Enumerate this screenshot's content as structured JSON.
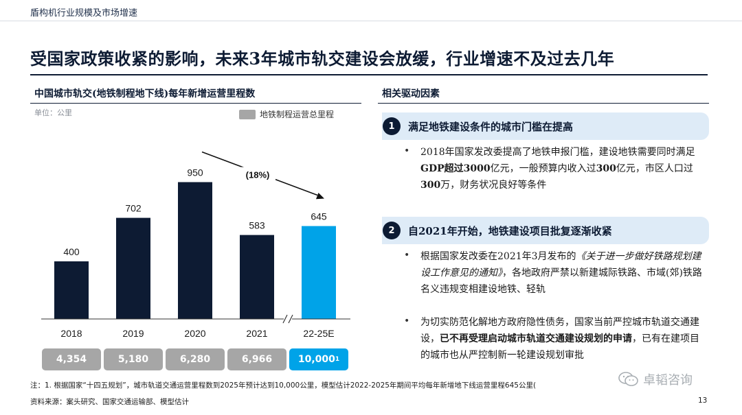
{
  "header": {
    "section_label": "盾构机行业规模及市场增速",
    "headline": "受国家政策收紧的影响，未来3年城市轨交建设会放缓，行业增速不及过去几年"
  },
  "left_panel": {
    "title": "中国城市轨交(地铁制程地下线)每年新增运营里程数",
    "unit": "单位：公里",
    "legend_label": "地铁制程运营总里程"
  },
  "chart_data": {
    "type": "bar",
    "categories": [
      "2018",
      "2019",
      "2020",
      "2021",
      "22-25E"
    ],
    "values": [
      400,
      702,
      950,
      583,
      645
    ],
    "value_labels": [
      "400",
      "702",
      "950",
      "583",
      "645"
    ],
    "totals": [
      "4,354",
      "5,180",
      "6,280",
      "6,966",
      "10,000"
    ],
    "total_footnote": "1",
    "annotation": "(18%)",
    "ylim": [
      0,
      1000
    ],
    "colors": {
      "actual": "#0d1b33",
      "estimate": "#00a3e8",
      "total_actual": "#a6a6a6",
      "total_estimate": "#00a3e8"
    },
    "axis_break": true
  },
  "right_panel": {
    "title": "相关驱动因素",
    "drivers": [
      {
        "number": "1",
        "title": "满足地铁建设条件的城市门槛在提高",
        "bullets": [
          [
            {
              "t": "2018年国家发改委提高了地铁申报门槛，建设地铁需要同时满足",
              "s": ""
            },
            {
              "t": "GDP超过3000",
              "s": "b"
            },
            {
              "t": "亿元，一般预算内收入过",
              "s": ""
            },
            {
              "t": "300",
              "s": "b"
            },
            {
              "t": "亿元，市区人口过",
              "s": ""
            },
            {
              "t": "300",
              "s": "b"
            },
            {
              "t": "万，财务状况良好等条件",
              "s": ""
            }
          ]
        ]
      },
      {
        "number": "2",
        "title": "自2021年开始，地铁建设项目批复逐渐收紧",
        "bullets": [
          [
            {
              "t": "根据国家发改委在2021年3月发布的",
              "s": ""
            },
            {
              "t": "《关于进一步做好铁路规划建设工作意见的通知》",
              "s": "it"
            },
            {
              "t": "，各地政府严禁以新建城际铁路、市域(郊)铁路名义违规变相建设地铁、轻轨",
              "s": ""
            }
          ],
          [
            {
              "t": "为切实防范化解地方政府隐性债务，国家当前严控城市轨道交通建设，",
              "s": ""
            },
            {
              "t": "已不再受理启动城市轨道交通建设规划的申请",
              "s": "b"
            },
            {
              "t": "，已有在建项目的城市也从严控制新一轮建设规划审批",
              "s": ""
            }
          ]
        ]
      }
    ]
  },
  "footer": {
    "note": "注：1. 根据国家“十四五规划”，城市轨道交通运营里程数到2025年预计达到10,000公里，模型估计2022-2025年期间平均每年新增地下线运营里程645公里(",
    "source": "资料来源：案头研究、国家交通运输部、模型估计",
    "page_number": "13",
    "watermark_text": "卓韬咨询",
    "watermark_icon": "wechat-icon"
  }
}
